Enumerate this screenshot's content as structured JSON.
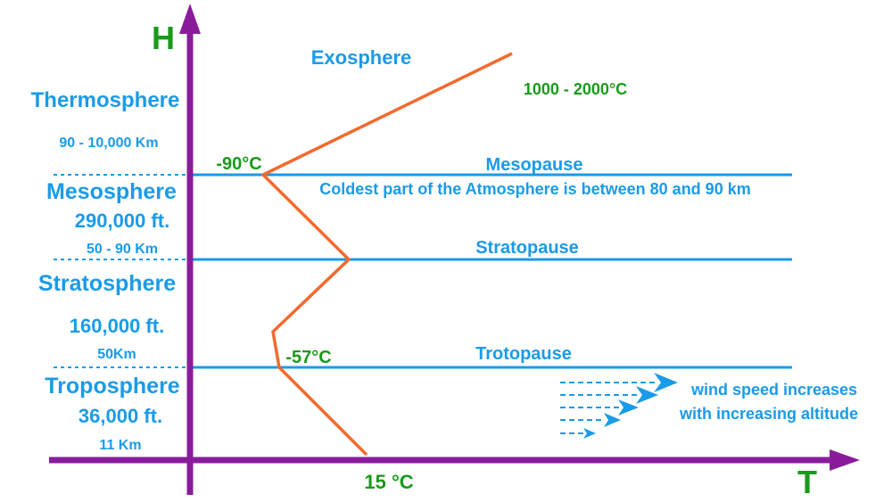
{
  "axes": {
    "y_label": "H",
    "x_label": "T"
  },
  "layers": {
    "exosphere": {
      "name": "Exosphere",
      "temperature": "1000 - 2000°C"
    },
    "thermosphere": {
      "name": "Thermosphere",
      "range": "90 - 10,000 Km"
    },
    "mesopause": {
      "name": "Mesopause",
      "temperature": "-90°C",
      "note": "Coldest part of the Atmosphere is between 80 and 90 km"
    },
    "mesosphere": {
      "name": "Mesosphere",
      "feet": "290,000 ft.",
      "range": "50 - 90 Km"
    },
    "stratopause": {
      "name": "Stratopause"
    },
    "stratosphere": {
      "name": "Stratosphere",
      "feet": "160,000 ft.",
      "range": "50Km"
    },
    "tropopause": {
      "name": "Trotopause",
      "temperature": "-57°C"
    },
    "troposphere": {
      "name": "Troposphere",
      "feet": "36,000 ft.",
      "range": "11 Km"
    },
    "surface": {
      "temperature": "15 °C"
    }
  },
  "wind_note": {
    "line1": "wind speed increases",
    "line2": "with increasing altitude"
  },
  "colors": {
    "axis": "#8a1c9c",
    "layer_text": "#1a9be8",
    "temperature_text": "#1a9a1a",
    "boundary_line": "#1a9be8",
    "temperature_profile": "#f26a2e"
  }
}
